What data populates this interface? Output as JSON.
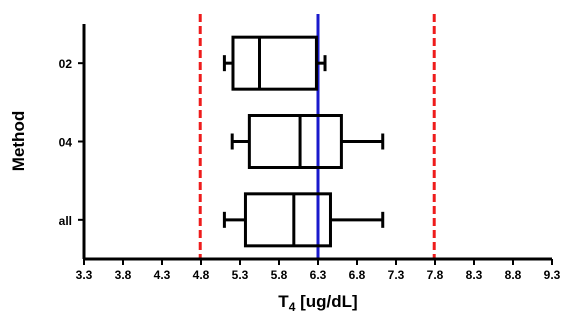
{
  "chart_data": {
    "type": "boxplot",
    "orientation": "horizontal",
    "xlabel_main": "T",
    "xlabel_sub": "4",
    "xlabel_unit": " [ug/dL]",
    "ylabel": "Method",
    "xlim": [
      3.3,
      9.3
    ],
    "xticks": [
      "3.3",
      "3.8",
      "4.3",
      "4.8",
      "5.3",
      "5.8",
      "6.3",
      "6.8",
      "7.3",
      "7.8",
      "8.3",
      "8.8",
      "9.3"
    ],
    "grid": false,
    "categories": [
      "02",
      "04",
      "all"
    ],
    "boxes": [
      {
        "category": "02",
        "min": 5.1,
        "q1": 5.21,
        "median": 5.55,
        "q3": 6.28,
        "max": 6.39
      },
      {
        "category": "04",
        "min": 5.2,
        "q1": 5.42,
        "median": 6.07,
        "q3": 6.6,
        "max": 7.13
      },
      {
        "category": "all",
        "min": 5.1,
        "q1": 5.37,
        "median": 5.99,
        "q3": 6.46,
        "max": 7.13
      }
    ],
    "reference_lines": [
      {
        "value": 4.79,
        "style": "dashed",
        "color": "#ee1c1c"
      },
      {
        "value": 7.79,
        "style": "dashed",
        "color": "#ee1c1c"
      },
      {
        "value": 6.3,
        "style": "solid",
        "color": "#1a1acc"
      }
    ],
    "colors": {
      "box": "#000000",
      "axis": "#000000"
    }
  }
}
